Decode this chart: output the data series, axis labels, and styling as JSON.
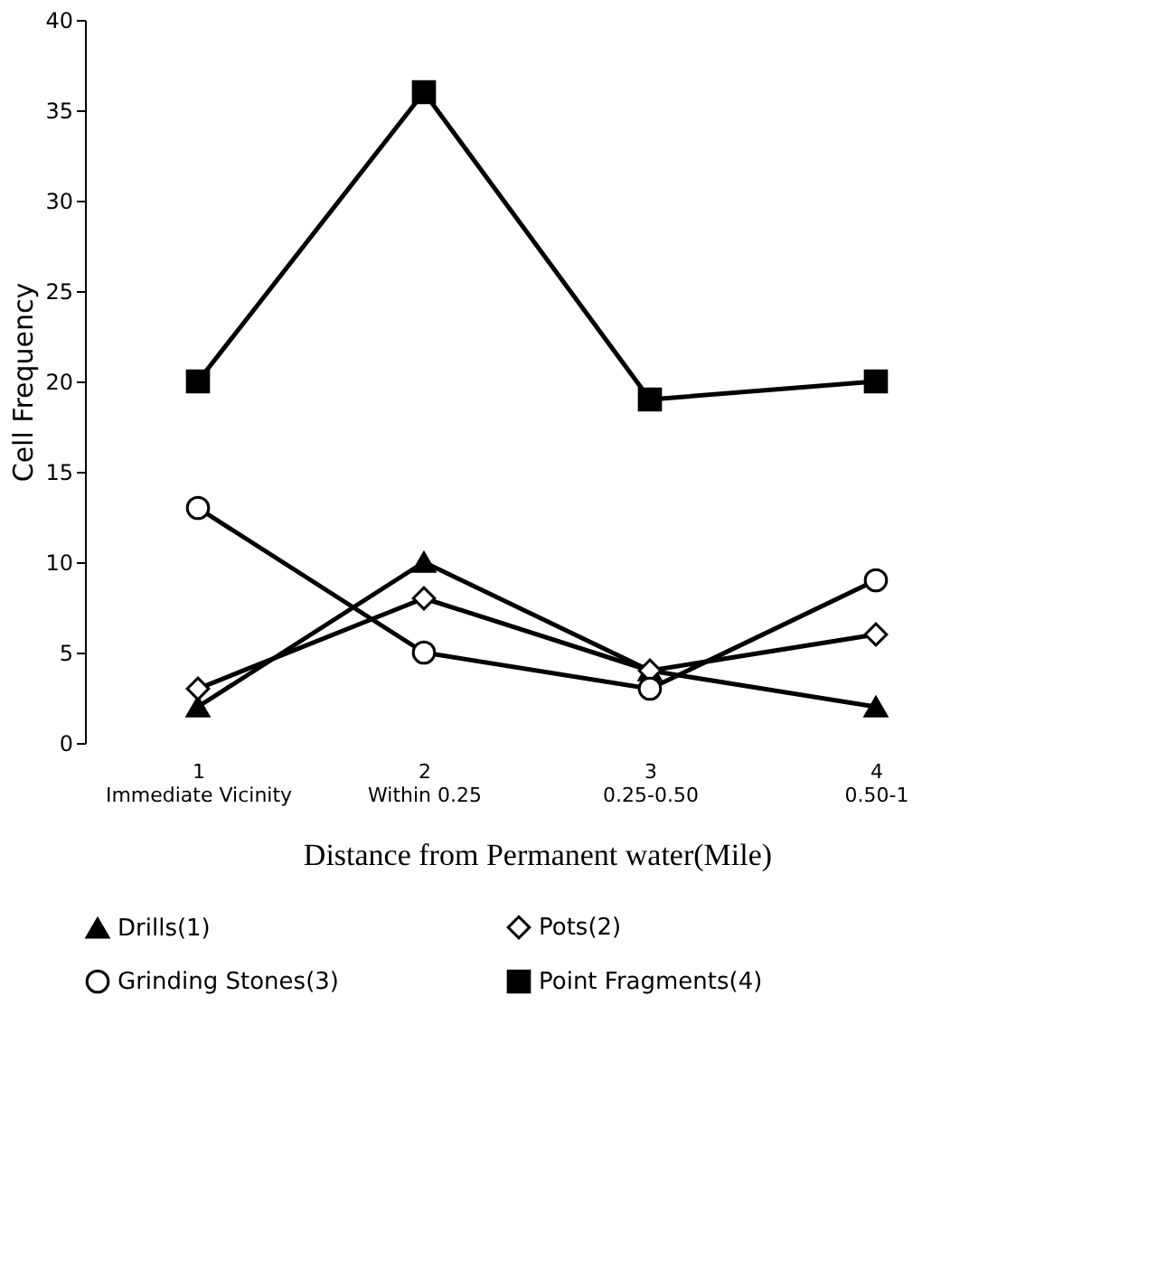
{
  "chart_data": {
    "type": "line",
    "xlabel": "Distance from Permanent water(Mile)",
    "ylabel": "Cell Frequency",
    "categories": [
      "1\nImmediate Vicinity",
      "2\nWithin 0.25",
      "3\n0.25-0.50",
      "4\n0.50-1"
    ],
    "ylim": [
      0,
      40
    ],
    "yticks": [
      0,
      5,
      10,
      15,
      20,
      25,
      30,
      35,
      40
    ],
    "grid": false,
    "legend": "bottom",
    "line_style": "solid",
    "series": [
      {
        "name": "Drills(1)",
        "color": "#000000",
        "marker": "triangle",
        "values": [
          2,
          10,
          4,
          2
        ]
      },
      {
        "name": "Pots(2)",
        "color": "#000000",
        "marker": "diamond",
        "values": [
          3,
          8,
          4,
          6
        ]
      },
      {
        "name": "Grinding Stones(3)",
        "color": "#000000",
        "marker": "circle",
        "values": [
          13,
          5,
          3,
          9
        ]
      },
      {
        "name": "Point Fragments(4)",
        "color": "#000000",
        "marker": "square",
        "values": [
          20,
          36,
          19,
          20
        ]
      }
    ]
  }
}
